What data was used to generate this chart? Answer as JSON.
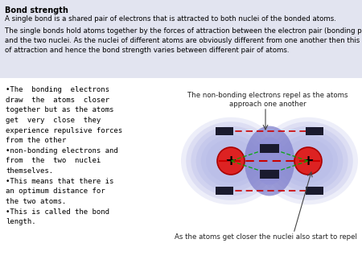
{
  "background_color": "#e2e4f0",
  "title_text": "Bond strength",
  "line1": "A single bond is a shared pair of electrons that is attracted to both nuclei of the bonded atoms.",
  "line2": "The single bonds hold atoms together by the forces of attraction between the electron pair (bonding pair)\nand the two nuclei. As the nuclei of different atoms are obviously different from one another then this force\nof attraction and hence the bond strength varies between different pair of atoms.",
  "bullet_lines": [
    "•The  bonding  electrons",
    "draw  the  atoms  closer",
    "together but as the atoms",
    "get  very  close  they",
    "experience repulsive forces",
    "from the other",
    "•non-bonding electrons and",
    "from  the  two  nuclei",
    "themselves.",
    "•This means that there is",
    "an optimum distance for",
    "the two atoms.",
    "•This is called the bond",
    "length."
  ],
  "diagram_label_top": "The non-bonding electrons repel as the atoms\napproach one another",
  "diagram_label_bottom": "As the atoms get closer the nuclei also start to repel",
  "nucleus_color": "#dd2222",
  "nucleus_border": "#aa0000",
  "electron_color": "#1a1a2e",
  "dashed_red": "#cc0000",
  "dashed_green": "#00aa00",
  "cloud_color": "#b8bce8",
  "bond_color": "#8080cc"
}
